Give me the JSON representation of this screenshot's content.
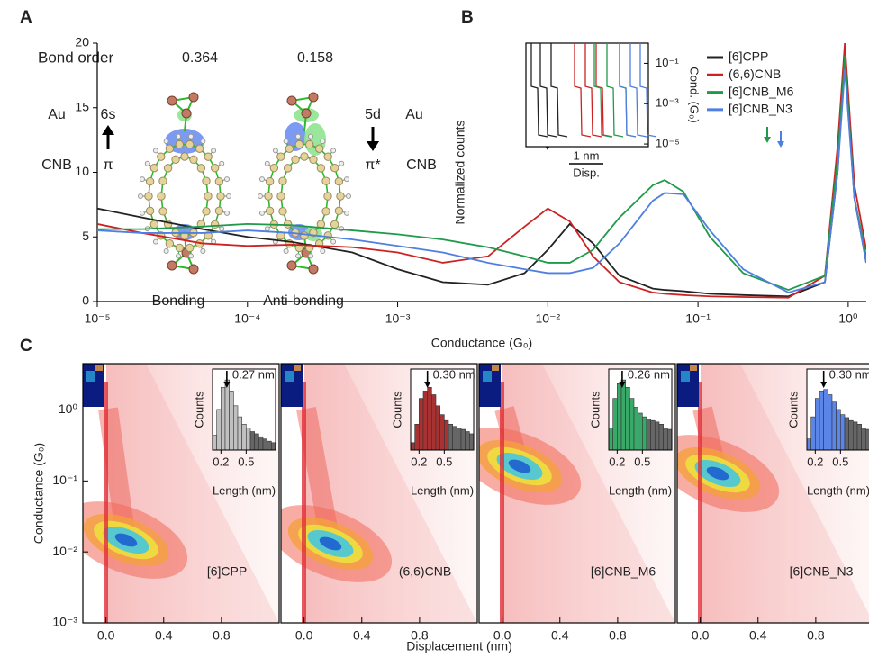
{
  "panel_labels": [
    "A",
    "B",
    "C"
  ],
  "panel_a": {
    "bond_order_label": "Bond order",
    "bond_orders": [
      0.364,
      0.158
    ],
    "left": {
      "metal": "Au",
      "orbital": "6s",
      "ligand": "CNB",
      "ligand_orbital": "π"
    },
    "right": {
      "orbital": "5d",
      "metal": "Au",
      "ligand_orbital": "π*",
      "ligand": "CNB"
    },
    "captions": [
      "Bonding",
      "Anti-bonding"
    ]
  },
  "chart_data": [
    {
      "type": "line",
      "xscale": "log",
      "xlabel": "Conductance (G₀)",
      "ylabel": "Normalized counts",
      "xlim": [
        1e-05,
        1.32
      ],
      "xticks": [
        {
          "value": 1e-05,
          "label": "10⁻⁵"
        },
        {
          "value": 0.0001,
          "label": "10⁻⁴"
        },
        {
          "value": 0.001,
          "label": "10⁻³"
        },
        {
          "value": 0.01,
          "label": "10⁻²"
        },
        {
          "value": 0.1,
          "label": "10⁻¹"
        },
        {
          "value": 1,
          "label": "10⁰"
        }
      ],
      "ylim": [
        0,
        20
      ],
      "yticks": [
        0,
        5,
        10,
        15,
        20
      ],
      "legend": "upper right",
      "x": [
        1e-05,
        2e-05,
        5e-05,
        0.0001,
        0.0002,
        0.0005,
        0.001,
        0.002,
        0.004,
        0.007,
        0.01,
        0.014,
        0.02,
        0.03,
        0.05,
        0.06,
        0.08,
        0.12,
        0.2,
        0.4,
        0.7,
        0.85,
        0.95,
        1.1,
        1.32
      ],
      "series": [
        {
          "name": "[6]CPP",
          "color": "#222222",
          "values": [
            7.2,
            6.5,
            5.6,
            5.0,
            4.6,
            3.8,
            2.5,
            1.5,
            1.3,
            2.2,
            4.0,
            6.0,
            4.5,
            2.0,
            1.0,
            0.9,
            0.8,
            0.6,
            0.5,
            0.4,
            1.5,
            10,
            19,
            8,
            3
          ]
        },
        {
          "name": "(6,6)CNB",
          "color": "#cc2222",
          "values": [
            6.0,
            5.3,
            4.5,
            4.3,
            4.4,
            4.2,
            3.8,
            3.0,
            3.5,
            5.8,
            7.2,
            6.2,
            3.5,
            1.5,
            0.7,
            0.6,
            0.5,
            0.4,
            0.35,
            0.3,
            2,
            12,
            20,
            9,
            4
          ]
        },
        {
          "name": "[6]CNB_M6",
          "color": "#1f9a4a",
          "values": [
            5.6,
            5.6,
            5.8,
            6.0,
            5.9,
            5.5,
            5.2,
            4.8,
            4.2,
            3.5,
            3.0,
            3.0,
            4.0,
            6.5,
            9.0,
            9.4,
            8.5,
            5.0,
            2.2,
            0.9,
            2,
            11,
            19,
            8,
            3.5
          ]
        },
        {
          "name": "[6]CNB_N3",
          "color": "#4f7fe0",
          "values": [
            5.5,
            5.3,
            5.3,
            5.5,
            5.3,
            4.8,
            4.3,
            3.8,
            3.0,
            2.5,
            2.2,
            2.2,
            2.6,
            4.5,
            7.8,
            8.4,
            8.3,
            5.5,
            2.5,
            0.7,
            1.5,
            10,
            18,
            8,
            3
          ]
        }
      ],
      "inset": {
        "ylabel": "Cond. (G₀)",
        "xlabel": "Disp.",
        "scale_bar_label": "1 nm",
        "ylim": [
          7.4e-06,
          1
        ],
        "yticks": [
          {
            "value": 0.1,
            "label": "10⁻¹"
          },
          {
            "value": 0.001,
            "label": "10⁻³"
          },
          {
            "value": 1e-05,
            "label": "10⁻⁵"
          }
        ]
      }
    },
    {
      "type": "heatmap",
      "label": "[6]CPP",
      "yscale": "log",
      "ylim": [
        0.001,
        4.5
      ],
      "yticks": [
        {
          "value": 1,
          "label": "10⁰"
        },
        {
          "value": 0.1,
          "label": "10⁻¹"
        },
        {
          "value": 0.01,
          "label": "10⁻²"
        },
        {
          "value": 0.001,
          "label": "10⁻³"
        }
      ],
      "xlim": [
        -0.16,
        1.2
      ],
      "xticks": [
        {
          "value": 0,
          "label": "0.0"
        },
        0.4,
        0.8
      ],
      "inset": {
        "type": "histogram",
        "ylabel": "Counts",
        "xlabel": "Length (nm)",
        "xlim": [
          0.1,
          0.85
        ],
        "xticks": [
          0.2,
          0.5
        ],
        "ylim": [
          0,
          100
        ],
        "bins": [
          0.1,
          0.15,
          0.2,
          0.25,
          0.3,
          0.35,
          0.4,
          0.45,
          0.5,
          0.55,
          0.6,
          0.65,
          0.7,
          0.75,
          0.8,
          0.85
        ],
        "values": [
          20,
          55,
          85,
          95,
          80,
          60,
          45,
          35,
          30,
          25,
          22,
          18,
          15,
          12,
          10
        ],
        "color": "#c0c0c0",
        "peak": 0.27,
        "peak_label": "0.27 nm"
      }
    },
    {
      "type": "heatmap",
      "label": "(6,6)CNB",
      "xlim": [
        -0.16,
        1.2
      ],
      "xticks": [
        {
          "value": 0,
          "label": "0.0"
        },
        0.4,
        0.8
      ],
      "inset": {
        "type": "histogram",
        "ylabel": "Counts",
        "xlabel": "Length (nm)",
        "xlim": [
          0.1,
          0.85
        ],
        "xticks": [
          0.2,
          0.5
        ],
        "ylim": [
          0,
          100
        ],
        "bins": [
          0.1,
          0.15,
          0.2,
          0.25,
          0.3,
          0.35,
          0.4,
          0.45,
          0.5,
          0.55,
          0.6,
          0.65,
          0.7,
          0.75,
          0.8,
          0.85
        ],
        "values": [
          10,
          35,
          70,
          80,
          85,
          75,
          60,
          48,
          40,
          35,
          32,
          30,
          28,
          25,
          22
        ],
        "color": "#a83232",
        "peak": 0.3,
        "peak_label": "0.30 nm"
      }
    },
    {
      "type": "heatmap",
      "label": "[6]CNB_M6",
      "xlim": [
        -0.16,
        1.2
      ],
      "xticks": [
        {
          "value": 0,
          "label": "0.0"
        },
        0.4,
        0.8
      ],
      "inset": {
        "type": "histogram",
        "ylabel": "Counts",
        "xlabel": "Length (nm)",
        "xlim": [
          0.1,
          0.85
        ],
        "xticks": [
          0.2,
          0.5
        ],
        "ylim": [
          0,
          100
        ],
        "bins": [
          0.1,
          0.15,
          0.2,
          0.25,
          0.3,
          0.35,
          0.4,
          0.45,
          0.5,
          0.55,
          0.6,
          0.65,
          0.7,
          0.75,
          0.8,
          0.85
        ],
        "values": [
          30,
          70,
          90,
          95,
          85,
          70,
          58,
          50,
          45,
          42,
          40,
          38,
          35,
          30,
          28
        ],
        "color": "#3aa869",
        "peak": 0.26,
        "peak_label": "0.26 nm"
      }
    },
    {
      "type": "heatmap",
      "label": "[6]CNB_N3",
      "xlim": [
        -0.16,
        1.2
      ],
      "xticks": [
        {
          "value": 0,
          "label": "0.0"
        },
        0.4,
        0.8
      ],
      "inset": {
        "type": "histogram",
        "ylabel": "Counts",
        "xlabel": "Length (nm)",
        "xlim": [
          0.1,
          0.85
        ],
        "xticks": [
          0.2,
          0.5
        ],
        "ylim": [
          0,
          100
        ],
        "bins": [
          0.1,
          0.15,
          0.2,
          0.25,
          0.3,
          0.35,
          0.4,
          0.45,
          0.5,
          0.55,
          0.6,
          0.65,
          0.7,
          0.75,
          0.8,
          0.85
        ],
        "values": [
          15,
          45,
          70,
          80,
          82,
          75,
          65,
          55,
          48,
          44,
          40,
          38,
          35,
          30,
          28
        ],
        "color": "#5b86e8",
        "peak": 0.3,
        "peak_label": "0.30 nm"
      }
    }
  ],
  "figure_c": {
    "ylabel": "Conductance (G₀)",
    "xlabel": "Displacement (nm)"
  }
}
